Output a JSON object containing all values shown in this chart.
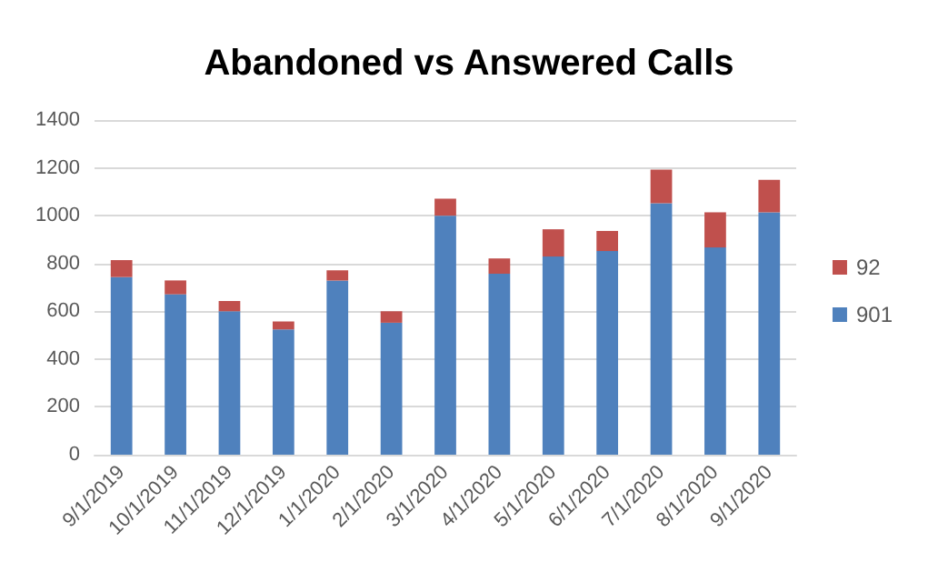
{
  "chart_data": {
    "type": "bar",
    "title": "Abandoned vs Answered Calls",
    "stacked": true,
    "categories": [
      "9/1/2019",
      "10/1/2019",
      "11/1/2019",
      "12/1/2019",
      "1/1/2020",
      "2/1/2020",
      "3/1/2020",
      "4/1/2020",
      "5/1/2020",
      "6/1/2020",
      "7/1/2020",
      "8/1/2020",
      "9/1/2020"
    ],
    "series": [
      {
        "name": "901",
        "color": "#4f81bd",
        "values": [
          743,
          671,
          600,
          524,
          729,
          552,
          1000,
          757,
          829,
          852,
          1052,
          867,
          1014
        ]
      },
      {
        "name": "92",
        "color": "#c0504d",
        "values": [
          71,
          58,
          43,
          33,
          42,
          48,
          71,
          64,
          114,
          84,
          141,
          147,
          136
        ]
      }
    ],
    "ylim": [
      0,
      1400
    ],
    "yticks": [
      0,
      200,
      400,
      600,
      800,
      1000,
      1200,
      1400
    ],
    "grid": "y",
    "legend": "right"
  }
}
